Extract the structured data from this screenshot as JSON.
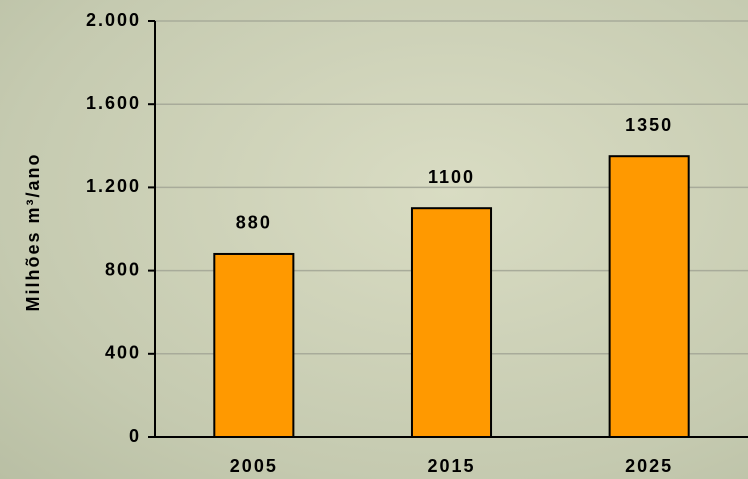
{
  "chart_data": {
    "type": "bar",
    "y_label": "Milhões m³/ano",
    "categories": [
      "2005",
      "2015",
      "2025"
    ],
    "values": [
      880,
      1100,
      1350
    ],
    "color": "#ff9900",
    "ylim": [
      0,
      2000
    ],
    "yticks": [
      0,
      400,
      800,
      {
        "value": 1200,
        "label": "1.200"
      },
      {
        "value": 1600,
        "label": "1.600"
      },
      {
        "value": 2000,
        "label": "2.000"
      }
    ],
    "grid": true
  }
}
